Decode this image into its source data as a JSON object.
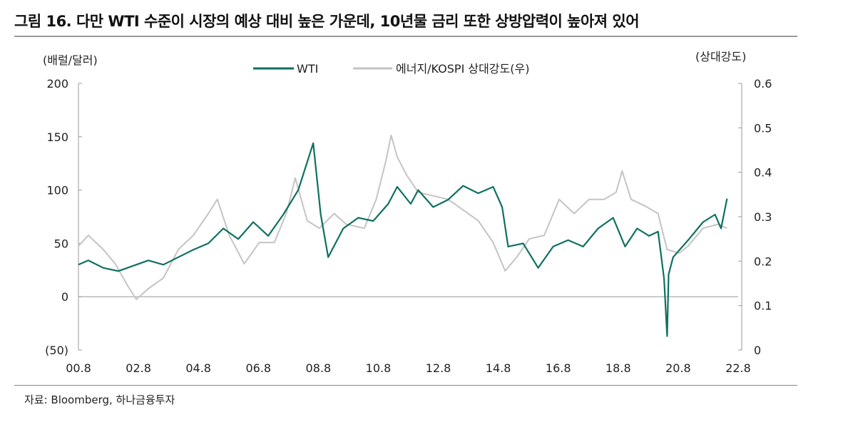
{
  "title": "그림 16. 다만 WTI 수준이 시장의 예상 대비 높은 가운데, 10년물 금리 또한 상방압력이 높아져 있어",
  "source": "자료: Bloomberg, 하나금융투자",
  "chart_data": {
    "type": "line",
    "left_axis_label": "(배럴/달러)",
    "right_axis_label": "(상대강도)",
    "ylim_left": [
      -50,
      200
    ],
    "ylim_right": [
      0,
      0.6
    ],
    "left_ticks": [
      "200",
      "150",
      "100",
      "50",
      "0",
      "(50)"
    ],
    "left_tick_values": [
      200,
      150,
      100,
      50,
      0,
      -50
    ],
    "right_ticks": [
      "0.6",
      "0.5",
      "0.4",
      "0.3",
      "0.2",
      "0.1",
      "0"
    ],
    "right_tick_values": [
      0.6,
      0.5,
      0.4,
      0.3,
      0.2,
      0.1,
      0
    ],
    "x_ticks": [
      "00.8",
      "02.8",
      "04.8",
      "06.8",
      "08.8",
      "10.8",
      "12.8",
      "14.8",
      "16.8",
      "18.8",
      "20.8",
      "22.8"
    ],
    "x_tick_values": [
      2000.67,
      2002.67,
      2004.67,
      2006.67,
      2008.67,
      2010.67,
      2012.67,
      2014.67,
      2016.67,
      2018.67,
      2020.67,
      2022.67
    ],
    "legend_placement": "top-center",
    "series": [
      {
        "name": "WTI",
        "axis": "left",
        "color": "#0f7061",
        "x": [
          2000.67,
          2001,
          2001.5,
          2002,
          2002.5,
          2003,
          2003.5,
          2004,
          2004.5,
          2005,
          2005.5,
          2006,
          2006.5,
          2007,
          2007.5,
          2008,
          2008.5,
          2008.75,
          2009,
          2009.5,
          2010,
          2010.5,
          2011,
          2011.3,
          2011.75,
          2012,
          2012.5,
          2013,
          2013.5,
          2014,
          2014.5,
          2014.8,
          2015,
          2015.5,
          2016,
          2016.5,
          2017,
          2017.5,
          2018,
          2018.5,
          2018.9,
          2019.3,
          2019.7,
          2020,
          2020.2,
          2020.3,
          2020.35,
          2020.5,
          2021,
          2021.5,
          2021.9,
          2022.1,
          2022.3
        ],
        "y": [
          30,
          34,
          27,
          24,
          29,
          34,
          30,
          37,
          44,
          50,
          64,
          54,
          70,
          57,
          77,
          100,
          144,
          77,
          37,
          64,
          74,
          71,
          87,
          103,
          87,
          100,
          84,
          91,
          104,
          97,
          103,
          84,
          47,
          50,
          27,
          47,
          53,
          47,
          64,
          74,
          47,
          64,
          57,
          61,
          17,
          -37,
          21,
          37,
          53,
          70,
          77,
          64,
          92
        ]
      },
      {
        "name": "에너지/KOSPI 상대강도(우)",
        "axis": "right",
        "color": "#c4c4c4",
        "x": [
          2000.67,
          2001,
          2001.5,
          2001.9,
          2002.3,
          2002.6,
          2003,
          2003.5,
          2004,
          2004.5,
          2005,
          2005.3,
          2005.7,
          2006.2,
          2006.7,
          2007.2,
          2007.6,
          2007.9,
          2008.3,
          2008.7,
          2009.2,
          2009.6,
          2010.2,
          2010.6,
          2010.9,
          2011.1,
          2011.3,
          2011.6,
          2012,
          2012.5,
          2013,
          2013.5,
          2014,
          2014.5,
          2014.9,
          2015.3,
          2015.7,
          2016.2,
          2016.7,
          2017.2,
          2017.7,
          2018.2,
          2018.6,
          2018.8,
          2019.1,
          2019.6,
          2020,
          2020.3,
          2020.7,
          2021,
          2021.5,
          2022,
          2022.3
        ],
        "y": [
          0.234,
          0.258,
          0.226,
          0.194,
          0.146,
          0.114,
          0.138,
          0.162,
          0.226,
          0.258,
          0.307,
          0.339,
          0.258,
          0.194,
          0.242,
          0.242,
          0.307,
          0.387,
          0.291,
          0.274,
          0.307,
          0.283,
          0.274,
          0.339,
          0.419,
          0.483,
          0.435,
          0.395,
          0.355,
          0.347,
          0.339,
          0.315,
          0.291,
          0.242,
          0.178,
          0.21,
          0.25,
          0.258,
          0.339,
          0.307,
          0.339,
          0.339,
          0.355,
          0.403,
          0.339,
          0.323,
          0.307,
          0.226,
          0.218,
          0.234,
          0.274,
          0.283,
          0.274
        ]
      }
    ]
  }
}
